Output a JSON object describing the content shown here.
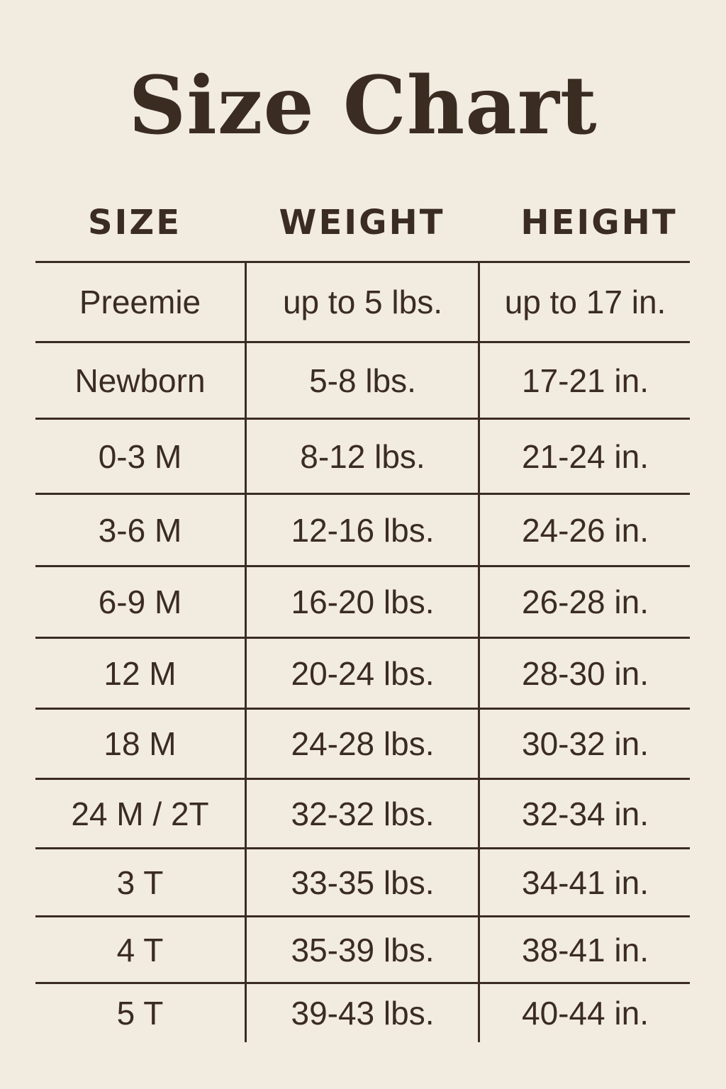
{
  "title": "Size Chart",
  "colors": {
    "background": "#f2ebe0",
    "ink": "#3b2c22"
  },
  "columns": [
    "SIZE",
    "WEIGHT",
    "HEIGHT"
  ],
  "rows": [
    [
      "Preemie",
      "up to 5 lbs.",
      "up to 17 in."
    ],
    [
      "Newborn",
      "5-8 lbs.",
      "17-21 in."
    ],
    [
      "0-3 M",
      "8-12 lbs.",
      "21-24 in."
    ],
    [
      "3-6 M",
      "12-16 lbs.",
      "24-26 in."
    ],
    [
      "6-9 M",
      "16-20 lbs.",
      "26-28 in."
    ],
    [
      "12 M",
      "20-24 lbs.",
      "28-30 in."
    ],
    [
      "18 M",
      "24-28 lbs.",
      "30-32 in."
    ],
    [
      "24 M / 2T",
      "32-32 lbs.",
      "32-34 in."
    ],
    [
      "3 T",
      "33-35 lbs.",
      "34-41 in."
    ],
    [
      "4 T",
      "35-39 lbs.",
      "38-41 in."
    ],
    [
      "5 T",
      "39-43 lbs.",
      "40-44 in."
    ]
  ]
}
